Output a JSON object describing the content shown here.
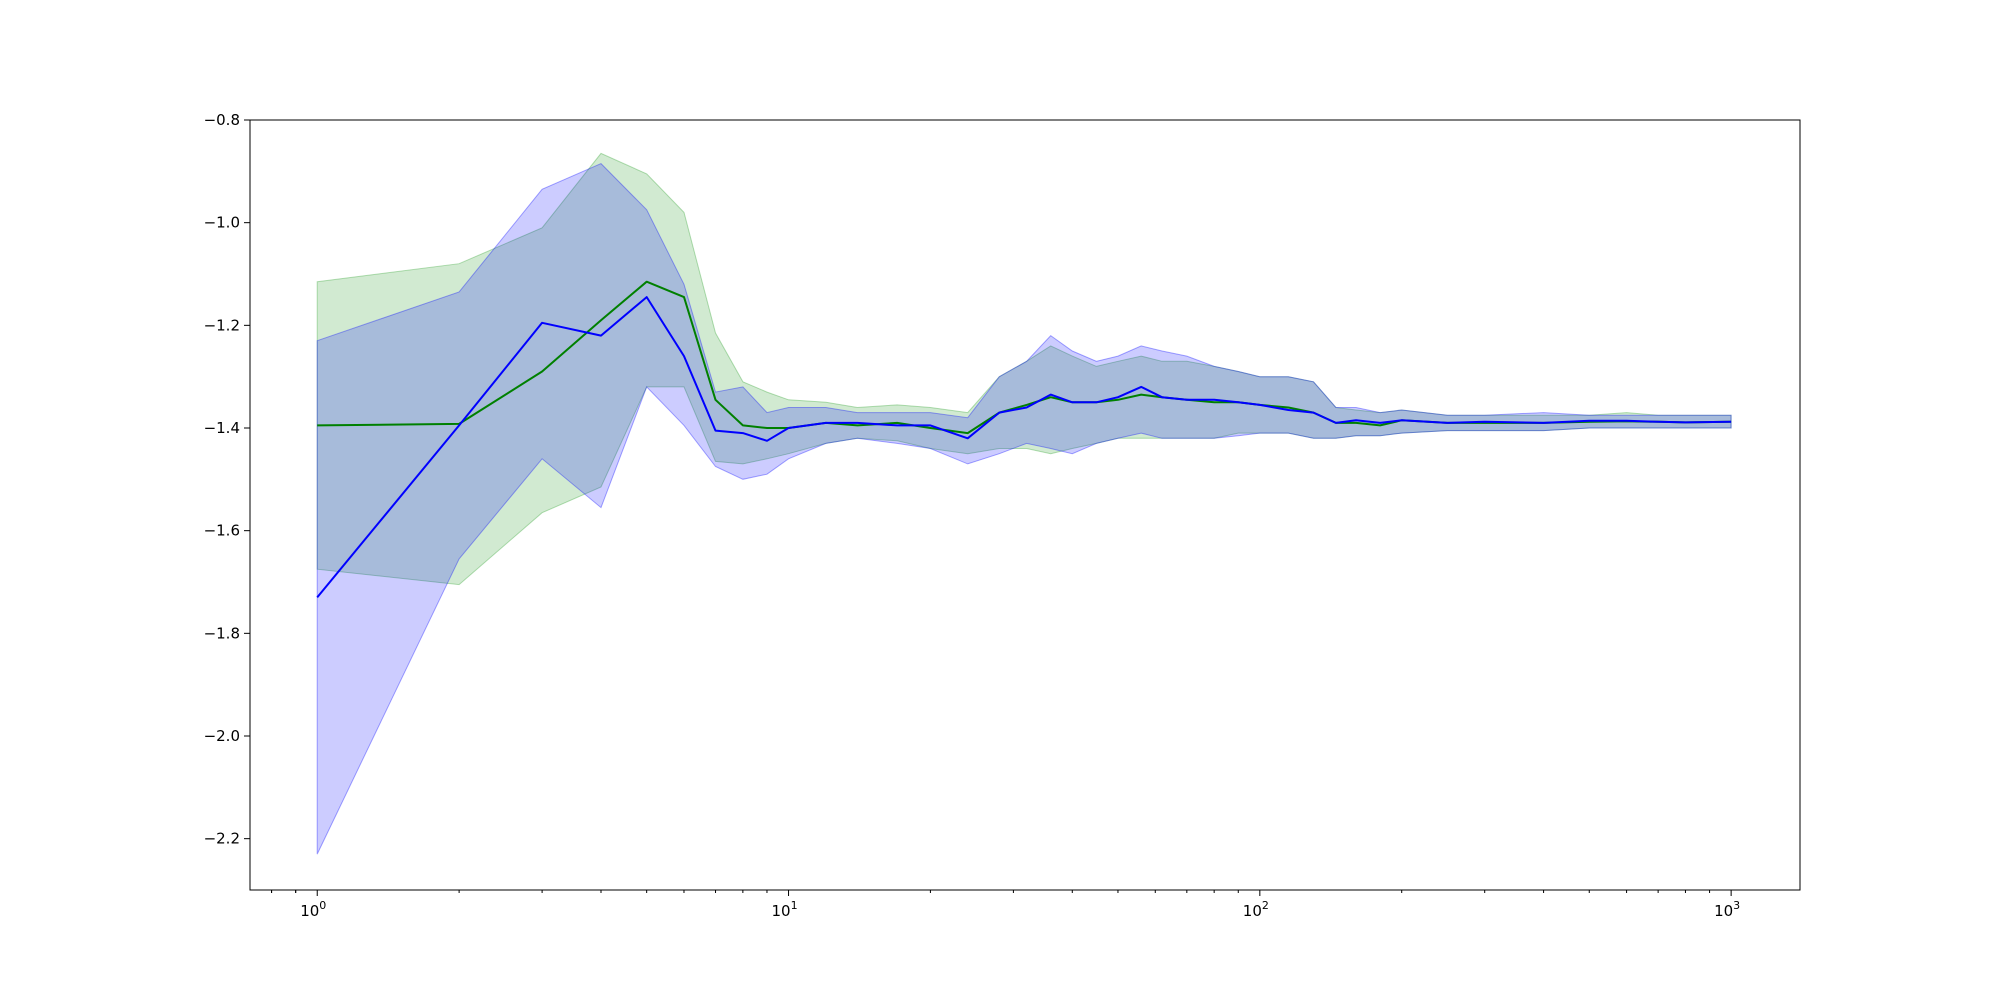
{
  "chart_data": {
    "type": "line",
    "title": "",
    "xlabel": "",
    "ylabel": "",
    "xscale": "log",
    "xlim": [
      0.72,
      1400
    ],
    "ylim": [
      -2.3,
      -0.8
    ],
    "grid": false,
    "legend": "none",
    "x_ticks": [
      {
        "value": 1,
        "base": "10",
        "exp": "0"
      },
      {
        "value": 10,
        "base": "10",
        "exp": "1"
      },
      {
        "value": 100,
        "base": "10",
        "exp": "2"
      },
      {
        "value": 1000,
        "base": "10",
        "exp": "3"
      }
    ],
    "y_ticks": [
      {
        "value": -0.8,
        "label": "−0.8"
      },
      {
        "value": -1.0,
        "label": "−1.0"
      },
      {
        "value": -1.2,
        "label": "−1.2"
      },
      {
        "value": -1.4,
        "label": "−1.4"
      },
      {
        "value": -1.6,
        "label": "−1.6"
      },
      {
        "value": -1.8,
        "label": "−1.8"
      },
      {
        "value": -2.0,
        "label": "−2.0"
      },
      {
        "value": -2.2,
        "label": "−2.2"
      }
    ],
    "series": [
      {
        "color": "#008000",
        "band_color": "#2ca02c",
        "band_opacity": 0.22,
        "x": [
          1,
          2,
          3,
          4,
          5,
          6,
          7,
          8,
          9,
          10,
          12,
          14,
          17,
          20,
          24,
          28,
          32,
          36,
          40,
          45,
          50,
          56,
          62,
          70,
          80,
          90,
          100,
          115,
          130,
          145,
          160,
          180,
          200,
          250,
          300,
          400,
          500,
          600,
          700,
          800,
          1000
        ],
        "mean": [
          -1.395,
          -1.392,
          -1.29,
          -1.19,
          -1.115,
          -1.145,
          -1.345,
          -1.395,
          -1.4,
          -1.4,
          -1.39,
          -1.395,
          -1.39,
          -1.4,
          -1.41,
          -1.37,
          -1.355,
          -1.34,
          -1.35,
          -1.35,
          -1.345,
          -1.335,
          -1.34,
          -1.345,
          -1.35,
          -1.35,
          -1.355,
          -1.36,
          -1.37,
          -1.39,
          -1.39,
          -1.395,
          -1.385,
          -1.39,
          -1.39,
          -1.39,
          -1.388,
          -1.387,
          -1.388,
          -1.389,
          -1.388
        ],
        "upper": [
          -1.115,
          -1.08,
          -1.01,
          -0.865,
          -0.905,
          -0.98,
          -1.215,
          -1.31,
          -1.33,
          -1.345,
          -1.35,
          -1.36,
          -1.355,
          -1.36,
          -1.37,
          -1.3,
          -1.27,
          -1.24,
          -1.26,
          -1.28,
          -1.27,
          -1.26,
          -1.27,
          -1.27,
          -1.28,
          -1.29,
          -1.3,
          -1.3,
          -1.31,
          -1.36,
          -1.365,
          -1.37,
          -1.365,
          -1.375,
          -1.375,
          -1.375,
          -1.375,
          -1.37,
          -1.375,
          -1.375,
          -1.375
        ],
        "lower": [
          -1.675,
          -1.705,
          -1.565,
          -1.515,
          -1.32,
          -1.32,
          -1.465,
          -1.47,
          -1.46,
          -1.45,
          -1.43,
          -1.42,
          -1.425,
          -1.44,
          -1.45,
          -1.44,
          -1.44,
          -1.45,
          -1.44,
          -1.43,
          -1.42,
          -1.42,
          -1.42,
          -1.42,
          -1.42,
          -1.41,
          -1.41,
          -1.41,
          -1.42,
          -1.42,
          -1.415,
          -1.415,
          -1.41,
          -1.405,
          -1.405,
          -1.405,
          -1.4,
          -1.4,
          -1.4,
          -1.4,
          -1.4
        ]
      },
      {
        "color": "#0000ff",
        "band_color": "#0000ff",
        "band_opacity": 0.2,
        "x": [
          1,
          2,
          3,
          4,
          5,
          6,
          7,
          8,
          9,
          10,
          12,
          14,
          17,
          20,
          24,
          28,
          32,
          36,
          40,
          45,
          50,
          56,
          62,
          70,
          80,
          90,
          100,
          115,
          130,
          145,
          160,
          180,
          200,
          250,
          300,
          400,
          500,
          600,
          700,
          800,
          1000
        ],
        "mean": [
          -1.73,
          -1.395,
          -1.195,
          -1.22,
          -1.145,
          -1.26,
          -1.405,
          -1.41,
          -1.425,
          -1.4,
          -1.39,
          -1.39,
          -1.395,
          -1.395,
          -1.42,
          -1.37,
          -1.36,
          -1.335,
          -1.35,
          -1.35,
          -1.34,
          -1.32,
          -1.34,
          -1.345,
          -1.345,
          -1.35,
          -1.355,
          -1.365,
          -1.37,
          -1.39,
          -1.385,
          -1.39,
          -1.385,
          -1.39,
          -1.388,
          -1.39,
          -1.386,
          -1.386,
          -1.388,
          -1.389,
          -1.388
        ],
        "upper": [
          -1.23,
          -1.135,
          -0.935,
          -0.885,
          -0.975,
          -1.12,
          -1.33,
          -1.32,
          -1.37,
          -1.36,
          -1.36,
          -1.37,
          -1.37,
          -1.37,
          -1.38,
          -1.3,
          -1.27,
          -1.22,
          -1.25,
          -1.27,
          -1.26,
          -1.24,
          -1.25,
          -1.26,
          -1.28,
          -1.29,
          -1.3,
          -1.3,
          -1.31,
          -1.36,
          -1.36,
          -1.37,
          -1.365,
          -1.375,
          -1.375,
          -1.37,
          -1.375,
          -1.375,
          -1.375,
          -1.375,
          -1.375
        ],
        "lower": [
          -2.23,
          -1.655,
          -1.46,
          -1.555,
          -1.32,
          -1.395,
          -1.475,
          -1.5,
          -1.49,
          -1.46,
          -1.43,
          -1.42,
          -1.43,
          -1.44,
          -1.47,
          -1.45,
          -1.43,
          -1.44,
          -1.45,
          -1.43,
          -1.42,
          -1.41,
          -1.42,
          -1.42,
          -1.42,
          -1.415,
          -1.41,
          -1.41,
          -1.42,
          -1.42,
          -1.415,
          -1.415,
          -1.41,
          -1.405,
          -1.405,
          -1.405,
          -1.4,
          -1.4,
          -1.4,
          -1.4,
          -1.4
        ]
      }
    ]
  }
}
